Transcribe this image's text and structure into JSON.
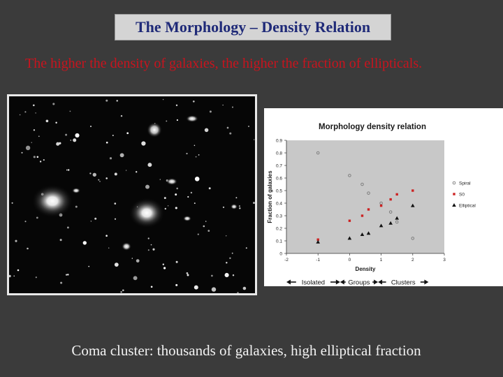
{
  "slide": {
    "title": "The Morphology – Density Relation",
    "subtitle": "The higher the density of galaxies, the higher the fraction of ellipticals.",
    "caption": "Coma cluster: thousands of galaxies, high elliptical fraction"
  },
  "colors": {
    "background": "#3b3b3b",
    "title_text": "#1f2a78",
    "subtitle_text": "#c8141e",
    "caption_text": "#f2f2f2",
    "spiral": "#777777",
    "s0": "#cc2222",
    "elliptical": "#111111",
    "plot_area": "#c8c8c8"
  },
  "chart_data": {
    "type": "scatter",
    "title": "Morphology density relation",
    "xlabel": "Density",
    "ylabel": "Fraction of galaxies",
    "xlim": [
      -2,
      3
    ],
    "ylim": [
      0,
      0.9
    ],
    "x_ticks": [
      "-2",
      "-1",
      "0",
      "1",
      "2",
      "3"
    ],
    "y_ticks": [
      "0",
      "0.1",
      "0.2",
      "0.3",
      "0.4",
      "0.5",
      "0.6",
      "0.7",
      "0.8",
      "0.9"
    ],
    "grid": false,
    "legend": "right",
    "series": [
      {
        "name": "Spiral",
        "marker": "open-circle",
        "color": "#777777",
        "points": [
          [
            -1,
            0.8
          ],
          [
            0,
            0.62
          ],
          [
            0.4,
            0.55
          ],
          [
            0.6,
            0.48
          ],
          [
            1.0,
            0.4
          ],
          [
            1.3,
            0.33
          ],
          [
            1.5,
            0.25
          ],
          [
            2.0,
            0.12
          ]
        ]
      },
      {
        "name": "S0",
        "marker": "square",
        "color": "#cc2222",
        "points": [
          [
            -1,
            0.11
          ],
          [
            0,
            0.26
          ],
          [
            0.4,
            0.3
          ],
          [
            0.6,
            0.35
          ],
          [
            1.0,
            0.38
          ],
          [
            1.3,
            0.43
          ],
          [
            1.5,
            0.47
          ],
          [
            2.0,
            0.5
          ]
        ]
      },
      {
        "name": "Elliptical",
        "marker": "triangle",
        "color": "#111111",
        "points": [
          [
            -1,
            0.09
          ],
          [
            0,
            0.12
          ],
          [
            0.4,
            0.15
          ],
          [
            0.6,
            0.16
          ],
          [
            1.0,
            0.22
          ],
          [
            1.3,
            0.24
          ],
          [
            1.5,
            0.28
          ],
          [
            2.0,
            0.38
          ]
        ]
      }
    ],
    "annotations": [
      {
        "text": "Isolated",
        "range": [
          -2,
          -0.3
        ]
      },
      {
        "text": "Groups",
        "range": [
          -0.3,
          0.9
        ]
      },
      {
        "text": "Clusters",
        "range": [
          0.9,
          2.5
        ]
      }
    ]
  }
}
